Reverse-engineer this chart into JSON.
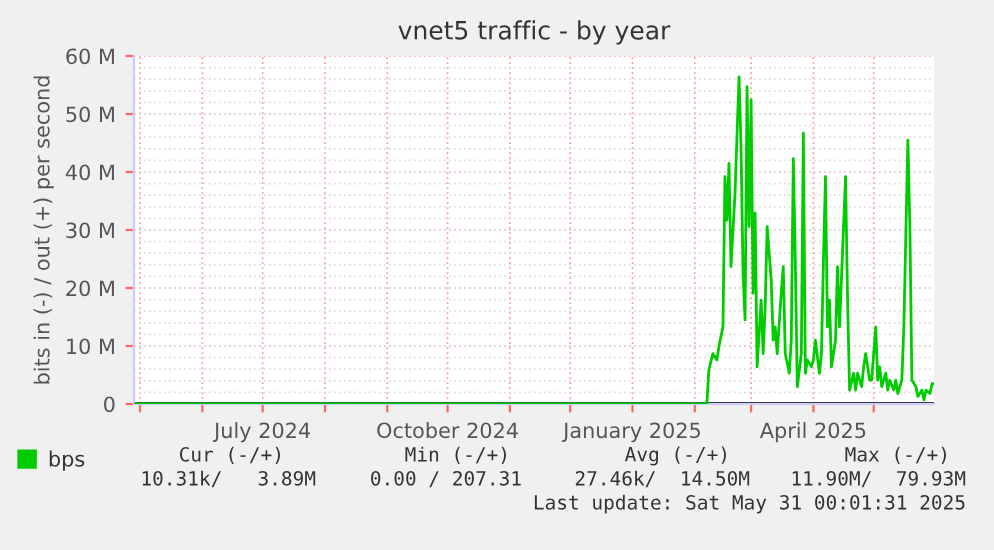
{
  "chart_data": {
    "type": "line",
    "title": "vnet5 traffic - by year",
    "ylabel": "bits in (-) / out (+) per second",
    "x": [
      "2024-04-28",
      "2025-02-07",
      "2025-02-08",
      "2025-02-10",
      "2025-02-12",
      "2025-02-13",
      "2025-02-15",
      "2025-02-16",
      "2025-02-17",
      "2025-02-18",
      "2025-02-19",
      "2025-02-21",
      "2025-02-23",
      "2025-02-24",
      "2025-02-25",
      "2025-02-26",
      "2025-02-27",
      "2025-02-28",
      "2025-03-01",
      "2025-03-02",
      "2025-03-03",
      "2025-03-04",
      "2025-03-06",
      "2025-03-07",
      "2025-03-08",
      "2025-03-09",
      "2025-03-11",
      "2025-03-12",
      "2025-03-13",
      "2025-03-14",
      "2025-03-16",
      "2025-03-17",
      "2025-03-18",
      "2025-03-20",
      "2025-03-21",
      "2025-03-22",
      "2025-03-23",
      "2025-03-24",
      "2025-03-26",
      "2025-03-27",
      "2025-03-28",
      "2025-03-29",
      "2025-03-31",
      "2025-04-01",
      "2025-04-02",
      "2025-04-04",
      "2025-04-05",
      "2025-04-06",
      "2025-04-07",
      "2025-04-08",
      "2025-04-09",
      "2025-04-10",
      "2025-04-12",
      "2025-04-13",
      "2025-04-14",
      "2025-04-16",
      "2025-04-17",
      "2025-04-18",
      "2025-04-19",
      "2025-04-21",
      "2025-04-22",
      "2025-04-23",
      "2025-04-25",
      "2025-04-26",
      "2025-04-27",
      "2025-04-29",
      "2025-04-30",
      "2025-05-02",
      "2025-05-03",
      "2025-05-04",
      "2025-05-05",
      "2025-05-07",
      "2025-05-08",
      "2025-05-09",
      "2025-05-11",
      "2025-05-12",
      "2025-05-13",
      "2025-05-15",
      "2025-05-16",
      "2025-05-18",
      "2025-05-19",
      "2025-05-20",
      "2025-05-22",
      "2025-05-23",
      "2025-05-25",
      "2025-05-26",
      "2025-05-27",
      "2025-05-29",
      "2025-05-30",
      "2025-05-31"
    ],
    "series": [
      {
        "name": "bps",
        "color": "#00cc00",
        "values": [
          0,
          0,
          5.9,
          8.7,
          7.6,
          9.9,
          13.3,
          39.2,
          31.7,
          41.5,
          23.7,
          36.3,
          56.4,
          44.4,
          22.5,
          14.5,
          54.7,
          30.6,
          52.4,
          19.1,
          32.9,
          6.4,
          17.9,
          8.7,
          16.8,
          30.6,
          21.4,
          11,
          13.3,
          8.7,
          19.1,
          23.7,
          8.7,
          5.3,
          11,
          42.3,
          24.8,
          3,
          8.7,
          46.7,
          5.3,
          7.6,
          6.4,
          7.6,
          11,
          5.3,
          8.7,
          24.8,
          39.2,
          13.3,
          17.9,
          6.4,
          11,
          23.7,
          13.3,
          30.6,
          39.2,
          17.9,
          2.4,
          5.3,
          2.4,
          5.3,
          3,
          6.4,
          8.7,
          4.1,
          4.1,
          13.3,
          4.1,
          6.4,
          3,
          5.3,
          2.4,
          4.1,
          2.4,
          4.1,
          1.8,
          4.1,
          13.3,
          45.5,
          30.6,
          4.1,
          3,
          1.3,
          2.4,
          0.7,
          2.4,
          1.8,
          3.5,
          3.5
        ]
      }
    ],
    "xlim": [
      "2024-04-28",
      "2025-05-31"
    ],
    "xticks": [
      {
        "value": "2024-05-01",
        "label": null
      },
      {
        "value": "2024-06-01",
        "label": null
      },
      {
        "value": "2024-07-01",
        "label": "July 2024"
      },
      {
        "value": "2024-08-01",
        "label": null
      },
      {
        "value": "2024-09-01",
        "label": null
      },
      {
        "value": "2024-10-01",
        "label": "October 2024"
      },
      {
        "value": "2024-11-01",
        "label": null
      },
      {
        "value": "2024-12-01",
        "label": null
      },
      {
        "value": "2025-01-01",
        "label": "January 2025"
      },
      {
        "value": "2025-02-01",
        "label": null
      },
      {
        "value": "2025-03-01",
        "label": null
      },
      {
        "value": "2025-04-01",
        "label": "April 2025"
      },
      {
        "value": "2025-05-01",
        "label": null
      }
    ],
    "ylim": [
      0,
      60
    ],
    "yticks": [
      0,
      {
        "value": 10,
        "label": "10 M"
      },
      {
        "value": 20,
        "label": "20 M"
      },
      {
        "value": 30,
        "label": "30 M"
      },
      {
        "value": 40,
        "label": "40 M"
      },
      {
        "value": 50,
        "label": "50 M"
      },
      {
        "value": 60,
        "label": "60 M"
      }
    ],
    "grid": true,
    "legend": "bottom",
    "annotations": [
      "Cur (-/+)",
      "Min (-/+)",
      "Avg (-/+)",
      "Max (-/+)",
      "10.31k/   3.89M",
      "0.00 / 207.31",
      "27.46k/  14.50M",
      "11.90M/  79.93M",
      "Last update: Sat May 31 00:01:31 2025"
    ]
  }
}
